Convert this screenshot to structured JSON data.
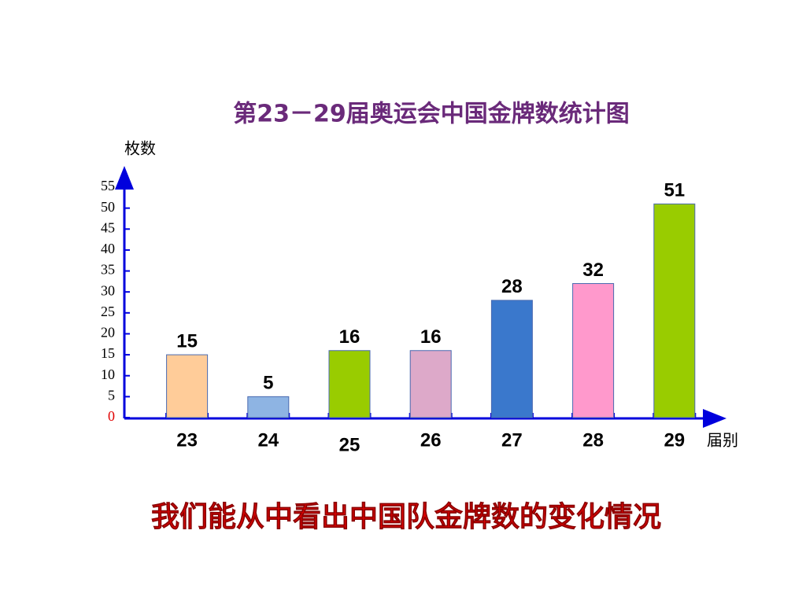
{
  "chart_data": {
    "type": "bar",
    "title": "第23－29届奥运会中国金牌数统计图",
    "y_label": "枚数",
    "x_label": "届别",
    "caption": "我们能从中看出中国队金牌数的变化情况",
    "categories": [
      "23",
      "24",
      "25",
      "26",
      "27",
      "28",
      "29"
    ],
    "values": [
      15,
      5,
      16,
      16,
      28,
      32,
      51
    ],
    "colors": [
      "#ffcc99",
      "#8eb4e3",
      "#99cc00",
      "#dda9c9",
      "#3a78cc",
      "#ff99cc",
      "#99cc00"
    ],
    "ylim": [
      0,
      55
    ],
    "yticks": [
      0,
      5,
      10,
      15,
      20,
      25,
      30,
      35,
      40,
      45,
      50,
      55
    ]
  }
}
